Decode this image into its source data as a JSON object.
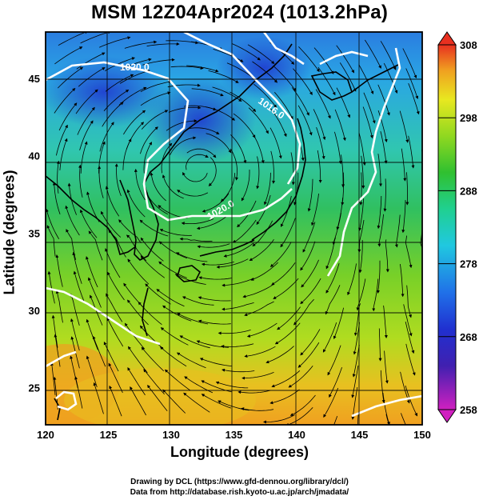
{
  "title": "MSM 12Z04Apr2024 (1013.2hPa)",
  "xaxis": {
    "label": "Longitude (degrees)",
    "ticks": [
      120,
      125,
      130,
      135,
      140,
      145,
      150
    ]
  },
  "yaxis": {
    "label": "Latitude  (degrees)",
    "ticks": [
      25,
      30,
      35,
      40,
      45
    ]
  },
  "colorbar": {
    "ticks": [
      258,
      268,
      278,
      288,
      298,
      308
    ]
  },
  "contours": [
    {
      "label": "1020.0"
    },
    {
      "label": "1016.0"
    },
    {
      "label": "1020.0"
    }
  ],
  "credits": {
    "line1": "Drawing by DCL (https://www.gfd-dennou.org/library/dcl/)",
    "line2": "Data from http://database.rish.kyoto-u.ac.jp/arch/jmadata/"
  },
  "colors": {
    "contour": "#ffffff",
    "streamline": "#000000",
    "coast": "#000000",
    "colorbar_stops": [
      "#d020c0",
      "#2020c0",
      "#2060e0",
      "#20c0e0",
      "#20d0a0",
      "#20c040",
      "#80d820",
      "#e8e820",
      "#f0a020",
      "#e83020"
    ]
  }
}
